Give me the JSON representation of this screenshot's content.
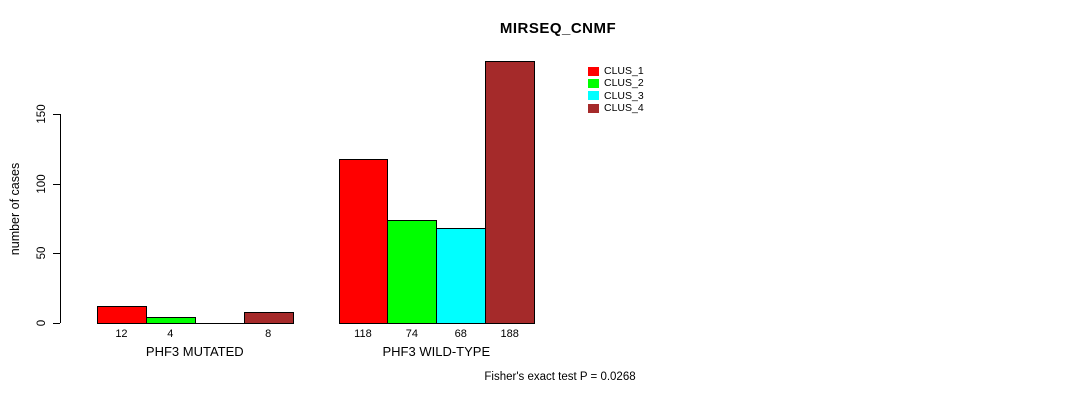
{
  "chart_data": {
    "type": "bar",
    "title": "MIRSEQ_CNMF",
    "ylabel": "number of cases",
    "xlabel": "",
    "categories": [
      "PHF3 MUTATED",
      "PHF3 WILD-TYPE"
    ],
    "series": [
      {
        "name": "CLUS_1",
        "color": "#FF0000",
        "values": [
          12,
          118
        ]
      },
      {
        "name": "CLUS_2",
        "color": "#00FF00",
        "values": [
          4,
          74
        ]
      },
      {
        "name": "CLUS_3",
        "color": "#00FFFF",
        "values": [
          0,
          68
        ]
      },
      {
        "name": "CLUS_4",
        "color": "#A52A2A",
        "values": [
          8,
          188
        ]
      }
    ],
    "bar_labels": [
      [
        "12",
        "4",
        "",
        "8"
      ],
      [
        "118",
        "74",
        "68",
        "188"
      ]
    ],
    "yticks": [
      0,
      50,
      100,
      150
    ],
    "ylim": [
      0,
      188
    ],
    "grid": false,
    "legend_position": "top-right",
    "annotation": "Fisher's exact test P = 0.0268"
  }
}
